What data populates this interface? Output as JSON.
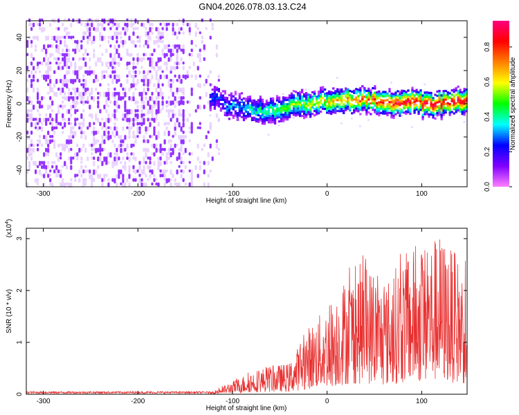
{
  "figure_title": "GN04.2026.078.03.13.C24",
  "chart_data": [
    {
      "type": "heatmap",
      "title": "GN04.2026.078.03.13.C24",
      "xlabel": "Height of straight line (km)",
      "ylabel": "Frequency (Hz)",
      "xlim": [
        -318,
        148
      ],
      "ylim": [
        -50,
        50
      ],
      "xticks": [
        -300,
        -200,
        -100,
        0,
        100
      ],
      "yticks": [
        -40,
        -20,
        0,
        20,
        40
      ],
      "colorbar": {
        "label": "Normalized spectral amplitude",
        "range": [
          0.0,
          0.95
        ],
        "ticks": [
          "0.0",
          "0.2",
          "0.4",
          "0.6",
          "0.8"
        ],
        "colormap": [
          "#ff80ff",
          "#8000ff",
          "#0000ff",
          "#00ffff",
          "#00ff00",
          "#ffff00",
          "#ff8000",
          "#ff0000",
          "#ff0080"
        ]
      },
      "noise_region_upper_km": -120,
      "signal_trace": [
        {
          "x": -110,
          "y": -2
        },
        {
          "x": -90,
          "y": -3
        },
        {
          "x": -70,
          "y": -5
        },
        {
          "x": -50,
          "y": -4
        },
        {
          "x": -30,
          "y": -1
        },
        {
          "x": -10,
          "y": 0
        },
        {
          "x": 10,
          "y": 1
        },
        {
          "x": 30,
          "y": 2
        },
        {
          "x": 50,
          "y": 1
        },
        {
          "x": 70,
          "y": -1
        },
        {
          "x": 90,
          "y": 0
        },
        {
          "x": 110,
          "y": -1
        },
        {
          "x": 130,
          "y": 0
        },
        {
          "x": 148,
          "y": 2
        }
      ]
    },
    {
      "type": "line",
      "xlabel": "Height of straight line (km)",
      "ylabel": "SNR (10 * v/v)",
      "y_multiplier": "(x10",
      "y_multiplier_exp": "4",
      "y_multiplier_close": ")",
      "xlim": [
        -318,
        148
      ],
      "ylim": [
        0,
        3.2
      ],
      "xticks": [
        -300,
        -200,
        -100,
        0,
        100
      ],
      "yticks": [
        0,
        1,
        2,
        3
      ],
      "series": [
        {
          "color": "#e83030",
          "envelope": [
            {
              "x": -318,
              "y": 0.05
            },
            {
              "x": -200,
              "y": 0.05
            },
            {
              "x": -120,
              "y": 0.07
            },
            {
              "x": -100,
              "y": 0.25
            },
            {
              "x": -80,
              "y": 0.45
            },
            {
              "x": -60,
              "y": 0.55
            },
            {
              "x": -40,
              "y": 0.6
            },
            {
              "x": -20,
              "y": 1.3
            },
            {
              "x": 0,
              "y": 1.7
            },
            {
              "x": 20,
              "y": 2.3
            },
            {
              "x": 40,
              "y": 2.6
            },
            {
              "x": 60,
              "y": 2.1
            },
            {
              "x": 80,
              "y": 2.7
            },
            {
              "x": 100,
              "y": 2.9
            },
            {
              "x": 120,
              "y": 3.1
            },
            {
              "x": 148,
              "y": 2.4
            }
          ]
        }
      ]
    }
  ]
}
